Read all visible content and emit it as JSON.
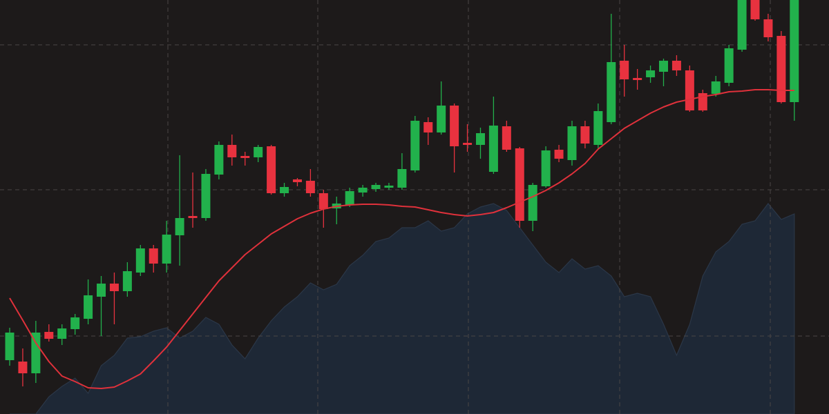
{
  "chart_data": {
    "type": "candlestick",
    "up_color": "#22b14c",
    "down_color": "#e8323f",
    "open": [
      78,
      76,
      59,
      119,
      109,
      123,
      138,
      170,
      189,
      178,
      205,
      240,
      218,
      259,
      287,
      284,
      347,
      390,
      374,
      372,
      388,
      320,
      340,
      338,
      320,
      298,
      303,
      321,
      326,
      328,
      328,
      353,
      423,
      408,
      447,
      393,
      390,
      351,
      417,
      385,
      280,
      330,
      383,
      368,
      417,
      390,
      423,
      512,
      487,
      488,
      496,
      512,
      498,
      465,
      464,
      480,
      528,
      600,
      572,
      548,
      452
    ],
    "high": [
      125,
      95,
      135,
      130,
      130,
      145,
      195,
      200,
      205,
      220,
      245,
      245,
      280,
      375,
      350,
      355,
      395,
      405,
      380,
      390,
      390,
      335,
      342,
      355,
      325,
      315,
      328,
      332,
      335,
      335,
      378,
      432,
      430,
      482,
      450,
      420,
      415,
      460,
      425,
      387,
      335,
      388,
      390,
      425,
      425,
      450,
      580,
      535,
      500,
      505,
      515,
      520,
      505,
      470,
      490,
      535,
      600,
      600,
      580,
      555,
      600
    ],
    "low": [
      70,
      40,
      45,
      105,
      100,
      115,
      130,
      113,
      130,
      170,
      200,
      205,
      205,
      215,
      270,
      280,
      340,
      360,
      360,
      365,
      318,
      315,
      330,
      315,
      270,
      275,
      300,
      315,
      322,
      325,
      325,
      350,
      390,
      405,
      350,
      380,
      370,
      348,
      380,
      270,
      265,
      328,
      365,
      360,
      385,
      385,
      420,
      460,
      470,
      480,
      475,
      490,
      438,
      438,
      460,
      475,
      525,
      570,
      540,
      450,
      425
    ],
    "close": [
      118,
      59,
      118,
      109,
      124,
      140,
      172,
      189,
      178,
      207,
      240,
      218,
      260,
      284,
      284,
      348,
      390,
      372,
      371,
      387,
      320,
      329,
      336,
      320,
      297,
      305,
      323,
      328,
      332,
      331,
      355,
      425,
      408,
      447,
      388,
      390,
      407,
      418,
      383,
      280,
      332,
      382,
      370,
      417,
      392,
      439,
      510,
      485,
      484,
      498,
      512,
      498,
      440,
      440,
      482,
      530,
      600,
      572,
      546,
      452,
      600
    ],
    "moving_average": {
      "color": "#e0313b",
      "values": [
        168,
        136,
        103,
        76,
        55,
        47,
        38,
        37,
        39,
        48,
        58,
        77,
        97,
        121,
        145,
        169,
        193,
        212,
        231,
        246,
        261,
        272,
        283,
        291,
        297,
        301,
        303,
        304,
        304,
        303,
        301,
        300,
        296,
        292,
        289,
        287,
        289,
        292,
        299,
        307,
        315,
        324,
        335,
        348,
        363,
        384,
        399,
        414,
        425,
        436,
        445,
        452,
        456,
        460,
        463,
        467,
        468,
        470,
        470,
        469,
        469
      ]
    },
    "shaded_area": {
      "color": "#1e2836",
      "values": [
        0,
        0,
        0,
        25,
        40,
        52,
        30,
        70,
        85,
        110,
        112,
        120,
        125,
        110,
        120,
        140,
        130,
        100,
        80,
        110,
        135,
        155,
        170,
        190,
        180,
        188,
        215,
        230,
        250,
        255,
        270,
        270,
        280,
        265,
        270,
        290,
        300,
        305,
        295,
        270,
        245,
        220,
        205,
        225,
        210,
        215,
        200,
        170,
        175,
        170,
        130,
        85,
        130,
        200,
        235,
        250,
        275,
        280,
        305,
        282,
        290
      ]
    },
    "ylim": [
      0,
      600
    ],
    "yticks": [
      113,
      325,
      535
    ],
    "grid": true
  }
}
